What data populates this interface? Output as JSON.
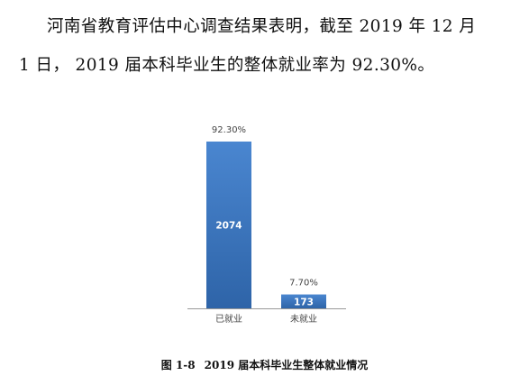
{
  "paragraph": {
    "line1": "河南省教育评估中心调查结果表明，截至 2019 年 12 月",
    "line2": "1 日，  2019 届本科毕业生的整体就业率为 92.30%。"
  },
  "caption": {
    "label": "图 1-8",
    "text": "2019 届本科毕业生整体就业情况"
  },
  "colors": {
    "bar_dark": "#2e64a8",
    "bar_light": "#4a86d0",
    "axis": "#999999"
  },
  "chart_data": {
    "type": "bar",
    "title": "",
    "xlabel": "",
    "ylabel": "",
    "categories": [
      "已就业",
      "未就业"
    ],
    "values": [
      2074,
      173
    ],
    "percent_labels": [
      "92.30%",
      "7.70%"
    ],
    "ylim": [
      0,
      2074
    ],
    "grid": false,
    "legend": "none"
  }
}
